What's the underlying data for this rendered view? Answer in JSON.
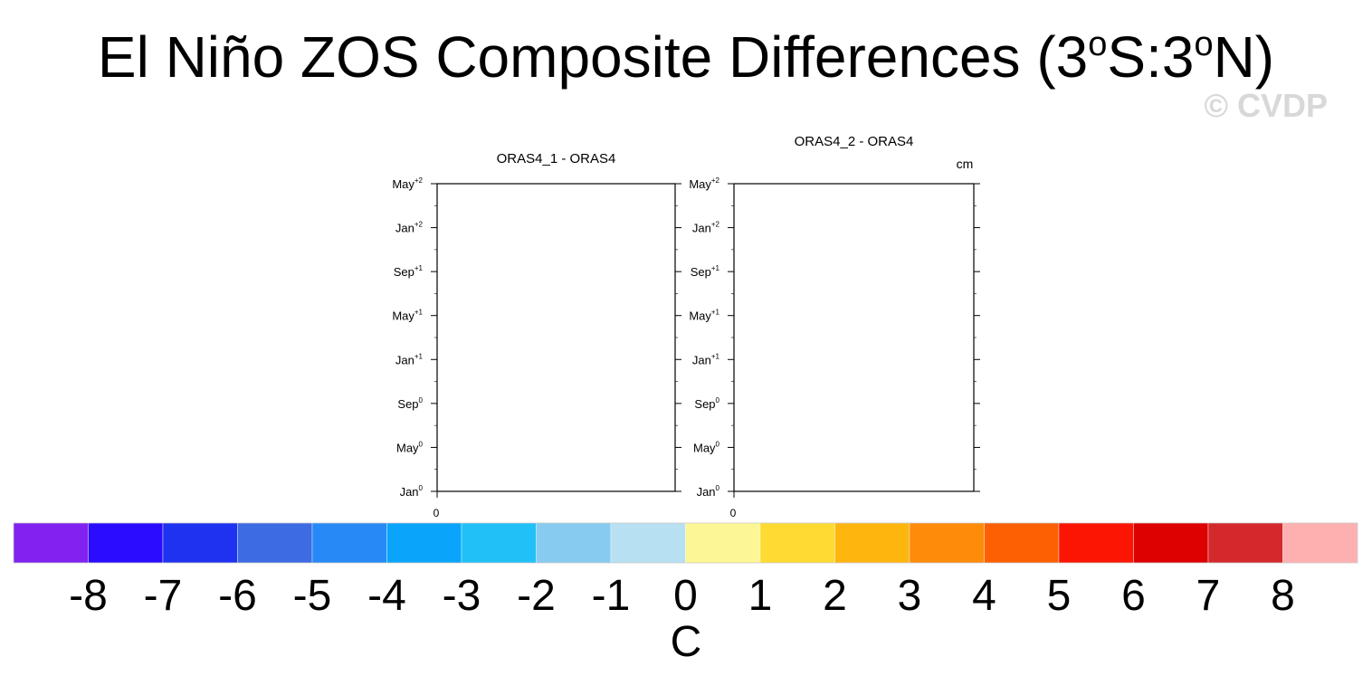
{
  "title": {
    "pre": "El Niño ZOS Composite Differences (3",
    "sup1": "o",
    "mid": "S:3",
    "sup2": "o",
    "post": "N)"
  },
  "watermark": "© CVDP",
  "units_label": "cm",
  "chart_data": [
    {
      "type": "heatmap",
      "title": "ORAS4_1 - ORAS4",
      "xlabel": "",
      "ylabel": "",
      "x_ticks": [
        "0"
      ],
      "y_ticks": [
        {
          "base": "Jan",
          "sup": "0"
        },
        {
          "base": "May",
          "sup": "0"
        },
        {
          "base": "Sep",
          "sup": "0"
        },
        {
          "base": "Jan",
          "sup": "+1"
        },
        {
          "base": "May",
          "sup": "+1"
        },
        {
          "base": "Sep",
          "sup": "+1"
        },
        {
          "base": "Jan",
          "sup": "+2"
        },
        {
          "base": "May",
          "sup": "+2"
        }
      ],
      "values": []
    },
    {
      "type": "heatmap",
      "title": "ORAS4_2 - ORAS4",
      "xlabel": "",
      "ylabel": "",
      "x_ticks": [
        "0"
      ],
      "y_ticks": [
        {
          "base": "Jan",
          "sup": "0"
        },
        {
          "base": "May",
          "sup": "0"
        },
        {
          "base": "Sep",
          "sup": "0"
        },
        {
          "base": "Jan",
          "sup": "+1"
        },
        {
          "base": "May",
          "sup": "+1"
        },
        {
          "base": "Sep",
          "sup": "+1"
        },
        {
          "base": "Jan",
          "sup": "+2"
        },
        {
          "base": "May",
          "sup": "+2"
        }
      ],
      "values": []
    }
  ],
  "colorbar": {
    "label": "C",
    "tick_labels": [
      "-8",
      "-7",
      "-6",
      "-5",
      "-4",
      "-3",
      "-2",
      "-1",
      "0",
      "1",
      "2",
      "3",
      "4",
      "5",
      "6",
      "7",
      "8"
    ],
    "colors": [
      "#8122f0",
      "#2a0cff",
      "#1f32ef",
      "#3c6be2",
      "#2789f6",
      "#0aa5fb",
      "#21c1f8",
      "#88cbf0",
      "#b7e0f2",
      "#fdf694",
      "#fedb32",
      "#feb60f",
      "#fe8b0a",
      "#fd5f03",
      "#fc1503",
      "#de0101",
      "#d3282c",
      "#feb0b1"
    ]
  }
}
